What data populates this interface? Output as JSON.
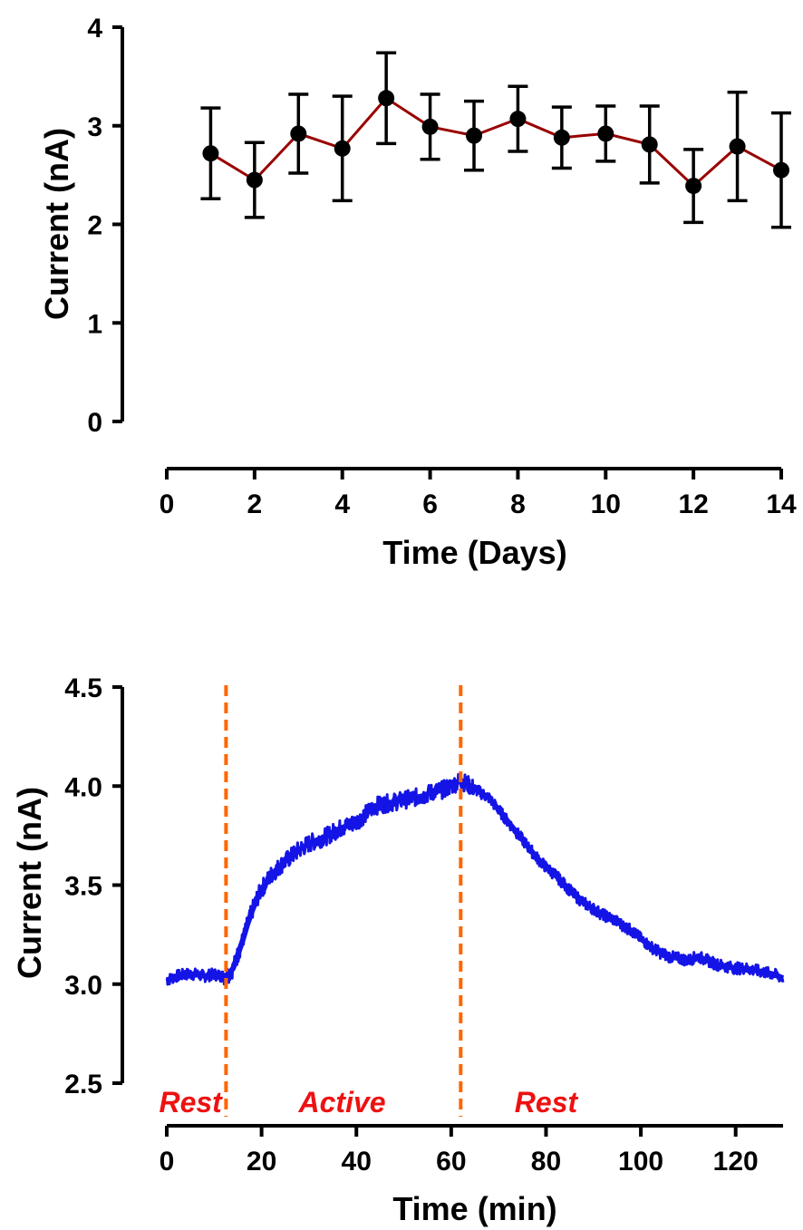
{
  "chart_data": [
    {
      "type": "line",
      "xlabel": "Time (Days)",
      "ylabel": "Current (nA)",
      "xlim": [
        0,
        14
      ],
      "ylim": [
        0,
        4
      ],
      "xticks": [
        0,
        2,
        4,
        6,
        8,
        10,
        12,
        14
      ],
      "yticks": [
        0,
        1,
        2,
        3,
        4
      ],
      "xtick_labels": [
        "0",
        "2",
        "4",
        "6",
        "8",
        "10",
        "12",
        "14"
      ],
      "ytick_labels": [
        "0",
        "1",
        "2",
        "3",
        "4"
      ],
      "grid": false,
      "series": [
        {
          "line_color": "#990000",
          "marker_color": "#000000",
          "x": [
            1,
            2,
            3,
            4,
            5,
            6,
            7,
            8,
            9,
            10,
            11,
            12,
            13,
            14
          ],
          "y": [
            2.72,
            2.45,
            2.92,
            2.77,
            3.28,
            2.99,
            2.9,
            3.07,
            2.88,
            2.92,
            2.81,
            2.39,
            2.79,
            2.55
          ],
          "error": [
            0.46,
            0.38,
            0.4,
            0.53,
            0.46,
            0.33,
            0.35,
            0.33,
            0.31,
            0.28,
            0.39,
            0.37,
            0.55,
            0.58
          ]
        }
      ]
    },
    {
      "type": "line",
      "xlabel": "Time (min)",
      "ylabel": "Current (nA)",
      "xlim": [
        0,
        130
      ],
      "ylim": [
        2.5,
        4.5
      ],
      "xticks": [
        0,
        20,
        40,
        60,
        80,
        100,
        120
      ],
      "yticks": [
        2.5,
        3.0,
        3.5,
        4.0,
        4.5
      ],
      "xtick_labels": [
        "0",
        "20",
        "40",
        "60",
        "80",
        "100",
        "120"
      ],
      "ytick_labels": [
        "2.5",
        "3.0",
        "3.5",
        "4.0",
        "4.5"
      ],
      "grid": false,
      "series": [
        {
          "color": "#1414e6",
          "x": [
            0,
            2,
            4,
            6,
            8,
            10,
            12,
            13,
            14,
            15,
            16,
            17,
            18,
            19,
            20,
            22,
            24,
            26,
            28,
            30,
            32,
            34,
            36,
            38,
            40,
            42,
            44,
            46,
            48,
            50,
            52,
            54,
            56,
            58,
            60,
            62,
            64,
            66,
            68,
            70,
            72,
            74,
            76,
            78,
            80,
            82,
            84,
            86,
            88,
            90,
            92,
            94,
            96,
            98,
            100,
            102,
            104,
            106,
            108,
            110,
            112,
            114,
            116,
            118,
            120,
            122,
            124,
            126,
            128,
            130
          ],
          "y": [
            3.02,
            3.04,
            3.05,
            3.05,
            3.04,
            3.05,
            3.04,
            3.05,
            3.08,
            3.15,
            3.22,
            3.3,
            3.37,
            3.43,
            3.48,
            3.55,
            3.6,
            3.64,
            3.68,
            3.71,
            3.73,
            3.75,
            3.78,
            3.8,
            3.82,
            3.86,
            3.9,
            3.91,
            3.92,
            3.93,
            3.94,
            3.95,
            3.97,
            3.98,
            4.0,
            4.03,
            4.0,
            3.97,
            3.94,
            3.88,
            3.82,
            3.76,
            3.7,
            3.64,
            3.59,
            3.55,
            3.5,
            3.45,
            3.41,
            3.38,
            3.35,
            3.33,
            3.3,
            3.27,
            3.23,
            3.19,
            3.16,
            3.14,
            3.13,
            3.12,
            3.14,
            3.12,
            3.1,
            3.09,
            3.08,
            3.08,
            3.07,
            3.06,
            3.05,
            3.03
          ]
        }
      ],
      "vlines": [
        {
          "x": 12.5,
          "color": "#ff6600",
          "style": "dashed"
        },
        {
          "x": 62,
          "color": "#ff6600",
          "style": "dashed"
        }
      ],
      "annotations": [
        {
          "text": "Rest",
          "x": 5,
          "color": "#ee1111"
        },
        {
          "text": "Active",
          "x": 37,
          "color": "#ee1111"
        },
        {
          "text": "Rest",
          "x": 80,
          "color": "#ee1111"
        }
      ]
    }
  ]
}
